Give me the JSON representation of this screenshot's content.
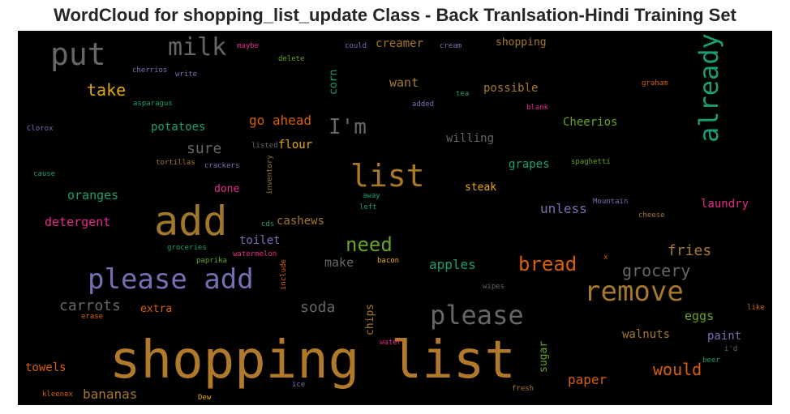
{
  "chart_data": {
    "type": "wordcloud",
    "title": "WordCloud for shopping_list_update Class - Back Tranlsation-Hindi Training Set",
    "background": "#000000",
    "words": [
      {
        "text": "shopping list",
        "color": "#b07a2a",
        "size": 64,
        "rotate": 0
      },
      {
        "text": "add",
        "color": "#a0782c",
        "size": 50,
        "rotate": 0
      },
      {
        "text": "please add",
        "color": "#7570b3",
        "size": 34,
        "rotate": 0
      },
      {
        "text": "remove",
        "color": "#a67828",
        "size": 34,
        "rotate": 0
      },
      {
        "text": "list",
        "color": "#a67828",
        "size": 38,
        "rotate": 0
      },
      {
        "text": "put",
        "color": "#666666",
        "size": 38,
        "rotate": 0
      },
      {
        "text": "already",
        "color": "#1b9e77",
        "size": 32,
        "rotate": 270
      },
      {
        "text": "please",
        "color": "#666666",
        "size": 32,
        "rotate": 0
      },
      {
        "text": "milk",
        "color": "#666666",
        "size": 30,
        "rotate": 0
      },
      {
        "text": "I'm",
        "color": "#666666",
        "size": 26,
        "rotate": 0
      },
      {
        "text": "bread",
        "color": "#d95f02",
        "size": 24,
        "rotate": 0
      },
      {
        "text": "need",
        "color": "#66a61e",
        "size": 24,
        "rotate": 0
      },
      {
        "text": "grocery",
        "color": "#666666",
        "size": 20,
        "rotate": 0
      },
      {
        "text": "would",
        "color": "#d95f02",
        "size": 20,
        "rotate": 0
      },
      {
        "text": "take",
        "color": "#e6ab02",
        "size": 20,
        "rotate": 0
      },
      {
        "text": "sure",
        "color": "#666666",
        "size": 18,
        "rotate": 0
      },
      {
        "text": "carrots",
        "color": "#666666",
        "size": 18,
        "rotate": 0
      },
      {
        "text": "soda",
        "color": "#666666",
        "size": 18,
        "rotate": 0
      },
      {
        "text": "fries",
        "color": "#a67828",
        "size": 18,
        "rotate": 0
      },
      {
        "text": "paper",
        "color": "#d95f02",
        "size": 16,
        "rotate": 0
      },
      {
        "text": "bananas",
        "color": "#a67828",
        "size": 16,
        "rotate": 0
      },
      {
        "text": "apples",
        "color": "#1b9e77",
        "size": 16,
        "rotate": 0
      },
      {
        "text": "unless",
        "color": "#7570b3",
        "size": 16,
        "rotate": 0
      },
      {
        "text": "go ahead",
        "color": "#d95f02",
        "size": 16,
        "rotate": 0
      },
      {
        "text": "want",
        "color": "#a67828",
        "size": 15,
        "rotate": 0
      },
      {
        "text": "eggs",
        "color": "#66a61e",
        "size": 15,
        "rotate": 0
      },
      {
        "text": "make",
        "color": "#666666",
        "size": 15,
        "rotate": 0
      },
      {
        "text": "oranges",
        "color": "#1b9e77",
        "size": 15,
        "rotate": 0
      },
      {
        "text": "detergent",
        "color": "#e7298a",
        "size": 15,
        "rotate": 0
      },
      {
        "text": "Cheerios",
        "color": "#66a61e",
        "size": 14,
        "rotate": 0
      },
      {
        "text": "willing",
        "color": "#666666",
        "size": 14,
        "rotate": 0
      },
      {
        "text": "walnuts",
        "color": "#a67828",
        "size": 14,
        "rotate": 0
      },
      {
        "text": "cashews",
        "color": "#a67828",
        "size": 14,
        "rotate": 0
      },
      {
        "text": "toilet",
        "color": "#7570b3",
        "size": 14,
        "rotate": 0
      },
      {
        "text": "creamer",
        "color": "#a67828",
        "size": 14,
        "rotate": 0
      },
      {
        "text": "possible",
        "color": "#a67828",
        "size": 14,
        "rotate": 0
      },
      {
        "text": "potatoes",
        "color": "#1b9e77",
        "size": 14,
        "rotate": 0
      },
      {
        "text": "flour",
        "color": "#e6ab02",
        "size": 14,
        "rotate": 0
      },
      {
        "text": "laundry",
        "color": "#e7298a",
        "size": 14,
        "rotate": 0
      },
      {
        "text": "paint",
        "color": "#7570b3",
        "size": 14,
        "rotate": 0
      },
      {
        "text": "towels",
        "color": "#d95f02",
        "size": 14,
        "rotate": 0
      },
      {
        "text": "grapes",
        "color": "#1b9e77",
        "size": 14,
        "rotate": 0
      },
      {
        "text": "shopping",
        "color": "#a67828",
        "size": 13,
        "rotate": 0
      },
      {
        "text": "steak",
        "color": "#e6ab02",
        "size": 13,
        "rotate": 0
      },
      {
        "text": "done",
        "color": "#e7298a",
        "size": 13,
        "rotate": 0
      },
      {
        "text": "extra",
        "color": "#d95f02",
        "size": 13,
        "rotate": 0
      },
      {
        "text": "chips",
        "color": "#a67828",
        "size": 13,
        "rotate": 270
      },
      {
        "text": "sugar",
        "color": "#66a61e",
        "size": 13,
        "rotate": 270
      },
      {
        "text": "corn",
        "color": "#1b9e77",
        "size": 13,
        "rotate": 270
      },
      {
        "text": "maybe",
        "color": "#e7298a",
        "size": 9,
        "rotate": 0
      },
      {
        "text": "delete",
        "color": "#66a61e",
        "size": 9,
        "rotate": 0
      },
      {
        "text": "could",
        "color": "#7570b3",
        "size": 9,
        "rotate": 0
      },
      {
        "text": "cream",
        "color": "#7570b3",
        "size": 9,
        "rotate": 0
      },
      {
        "text": "cherrios",
        "color": "#7570b3",
        "size": 9,
        "rotate": 0
      },
      {
        "text": "write",
        "color": "#7570b3",
        "size": 9,
        "rotate": 0
      },
      {
        "text": "asparagus",
        "color": "#1b9e77",
        "size": 9,
        "rotate": 0
      },
      {
        "text": "added",
        "color": "#7570b3",
        "size": 9,
        "rotate": 0
      },
      {
        "text": "tea",
        "color": "#1b9e77",
        "size": 9,
        "rotate": 0
      },
      {
        "text": "graham",
        "color": "#d95f02",
        "size": 9,
        "rotate": 0
      },
      {
        "text": "blank",
        "color": "#e7298a",
        "size": 9,
        "rotate": 0
      },
      {
        "text": "Clorox",
        "color": "#7570b3",
        "size": 9,
        "rotate": 0
      },
      {
        "text": "listed",
        "color": "#666666",
        "size": 9,
        "rotate": 0
      },
      {
        "text": "tortillas",
        "color": "#a67828",
        "size": 9,
        "rotate": 0
      },
      {
        "text": "crackers",
        "color": "#7570b3",
        "size": 9,
        "rotate": 0
      },
      {
        "text": "inventory",
        "color": "#a67828",
        "size": 9,
        "rotate": 270
      },
      {
        "text": "spaghetti",
        "color": "#66a61e",
        "size": 9,
        "rotate": 0
      },
      {
        "text": "cause",
        "color": "#1b9e77",
        "size": 9,
        "rotate": 0
      },
      {
        "text": "away",
        "color": "#1b9e77",
        "size": 9,
        "rotate": 0
      },
      {
        "text": "left",
        "color": "#1b9e77",
        "size": 9,
        "rotate": 0
      },
      {
        "text": "Mountain",
        "color": "#7570b3",
        "size": 9,
        "rotate": 0
      },
      {
        "text": "cheese",
        "color": "#a67828",
        "size": 9,
        "rotate": 0
      },
      {
        "text": "cds",
        "color": "#1b9e77",
        "size": 9,
        "rotate": 0
      },
      {
        "text": "groceries",
        "color": "#1b9e77",
        "size": 9,
        "rotate": 0
      },
      {
        "text": "watermelon",
        "color": "#e7298a",
        "size": 9,
        "rotate": 0
      },
      {
        "text": "paprika",
        "color": "#66a61e",
        "size": 9,
        "rotate": 0
      },
      {
        "text": "include",
        "color": "#d95f02",
        "size": 9,
        "rotate": 270
      },
      {
        "text": "bacon",
        "color": "#e6ab02",
        "size": 9,
        "rotate": 0
      },
      {
        "text": "x",
        "color": "#d95f02",
        "size": 9,
        "rotate": 0
      },
      {
        "text": "wipes",
        "color": "#666666",
        "size": 9,
        "rotate": 0
      },
      {
        "text": "erase",
        "color": "#d95f02",
        "size": 9,
        "rotate": 0
      },
      {
        "text": "like",
        "color": "#d95f02",
        "size": 9,
        "rotate": 0
      },
      {
        "text": "water",
        "color": "#e7298a",
        "size": 9,
        "rotate": 0
      },
      {
        "text": "i'd",
        "color": "#666666",
        "size": 9,
        "rotate": 0
      },
      {
        "text": "beer",
        "color": "#1b9e77",
        "size": 9,
        "rotate": 0
      },
      {
        "text": "ice",
        "color": "#7570b3",
        "size": 9,
        "rotate": 0
      },
      {
        "text": "kleenex",
        "color": "#d95f02",
        "size": 9,
        "rotate": 0
      },
      {
        "text": "Dew",
        "color": "#e6ab02",
        "size": 9,
        "rotate": 0
      },
      {
        "text": "fresh",
        "color": "#a67828",
        "size": 9,
        "rotate": 0
      }
    ]
  }
}
